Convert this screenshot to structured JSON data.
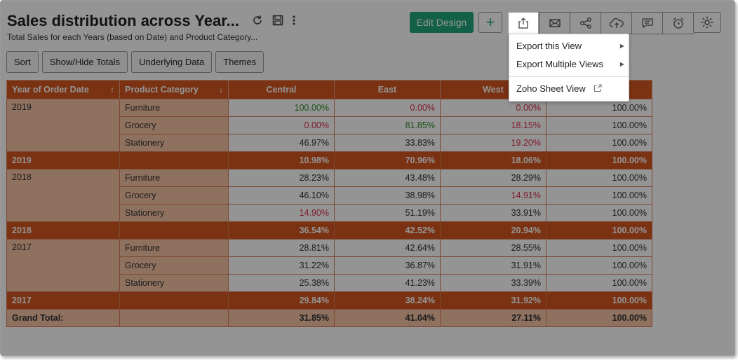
{
  "header": {
    "title": "Sales distribution across Year...",
    "subtitle": "Total Sales for each Years (based on Date) and Product Category...",
    "edit_design": "Edit Design",
    "add": "+"
  },
  "toolbar_icons": [
    "refresh-icon",
    "save-icon",
    "more-icon",
    "export-icon",
    "email-icon",
    "share-icon",
    "publish-icon",
    "comment-icon",
    "alarm-icon",
    "settings-icon"
  ],
  "buttons": {
    "sort": "Sort",
    "show_hide_totals": "Show/Hide Totals",
    "underlying_data": "Underlying Data",
    "themes": "Themes"
  },
  "table": {
    "headers": {
      "year": "Year of Order Date",
      "category": "Product Category",
      "central": "Central",
      "east": "East",
      "west": "West",
      "total": ""
    },
    "sort_year_glyph": "↑",
    "sort_category_glyph": "↓",
    "groups": [
      {
        "year": "2019",
        "rows": [
          {
            "category": "Furniture",
            "central": "100.00%",
            "east": "0.00%",
            "west": "0.00%",
            "total": "100.00%"
          },
          {
            "category": "Grocery",
            "central": "0.00%",
            "east": "81.85%",
            "west": "18.15%",
            "total": "100.00%"
          },
          {
            "category": "Stationery",
            "central": "46.97%",
            "east": "33.83%",
            "west": "19.20%",
            "total": "100.00%"
          }
        ],
        "subtotal": {
          "label": "2019",
          "central": "10.98%",
          "east": "70.96%",
          "west": "18.06%",
          "total": "100.00%"
        }
      },
      {
        "year": "2018",
        "rows": [
          {
            "category": "Furniture",
            "central": "28.23%",
            "east": "43.48%",
            "west": "28.29%",
            "total": "100.00%"
          },
          {
            "category": "Grocery",
            "central": "46.10%",
            "east": "38.98%",
            "west": "14.91%",
            "total": "100.00%"
          },
          {
            "category": "Stationery",
            "central": "14.90%",
            "east": "51.19%",
            "west": "33.91%",
            "total": "100.00%"
          }
        ],
        "subtotal": {
          "label": "2018",
          "central": "36.54%",
          "east": "42.52%",
          "west": "20.94%",
          "total": "100.00%"
        }
      },
      {
        "year": "2017",
        "rows": [
          {
            "category": "Furniture",
            "central": "28.81%",
            "east": "42.64%",
            "west": "28.55%",
            "total": "100.00%"
          },
          {
            "category": "Grocery",
            "central": "31.22%",
            "east": "36.87%",
            "west": "31.91%",
            "total": "100.00%"
          },
          {
            "category": "Stationery",
            "central": "25.38%",
            "east": "41.23%",
            "west": "33.39%",
            "total": "100.00%"
          }
        ],
        "subtotal": {
          "label": "2017",
          "central": "29.84%",
          "east": "38.24%",
          "west": "31.92%",
          "total": "100.00%"
        }
      }
    ],
    "grand_total": {
      "label": "Grand Total:",
      "central": "31.85%",
      "east": "41.04%",
      "west": "27.11%",
      "total": "100.00%"
    }
  },
  "export_menu": {
    "items": [
      "Export this View",
      "Export Multiple Views",
      "Zoho Sheet View"
    ]
  },
  "colors": {
    "header_bg": "#d2571f",
    "row_label_bg": "#f6c3a4",
    "accent_green": "#1fa67a",
    "value_green": "#2e8b2e",
    "value_red": "#d9304e"
  }
}
